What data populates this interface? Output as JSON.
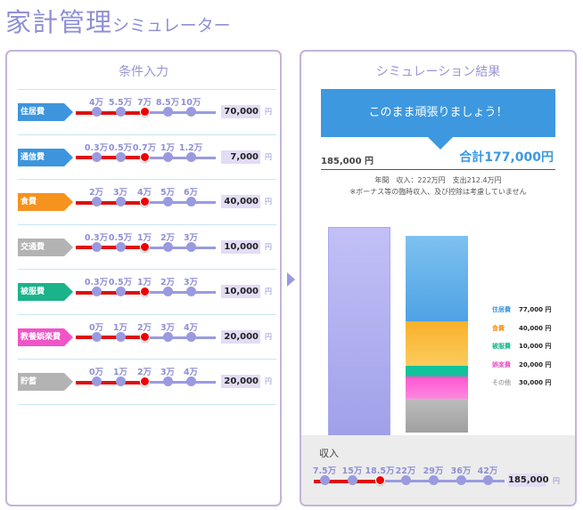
{
  "header": {
    "title_main": "家計管理",
    "title_sub": "シミュレーター"
  },
  "left_panel": {
    "title": "条件入力",
    "rows": [
      {
        "label": "住居費",
        "color": "#3d95de",
        "ticks": [
          "4万",
          "5.5万",
          "7万",
          "8.5万",
          "10万"
        ],
        "selected_index": 2,
        "value": "70,000",
        "unit": "円"
      },
      {
        "label": "通信費",
        "color": "#3d95de",
        "ticks": [
          "0.3万",
          "0.5万",
          "0.7万",
          "1万",
          "1.2万"
        ],
        "selected_index": 2,
        "value": "7,000",
        "unit": "円"
      },
      {
        "label": "食費",
        "color": "#f6921e",
        "ticks": [
          "2万",
          "3万",
          "4万",
          "5万",
          "6万"
        ],
        "selected_index": 2,
        "value": "40,000",
        "unit": "円"
      },
      {
        "label": "交通費",
        "color": "#b3b3b3",
        "ticks": [
          "0.3万",
          "0.5万",
          "1万",
          "2万",
          "3万"
        ],
        "selected_index": 2,
        "value": "10,000",
        "unit": "円"
      },
      {
        "label": "被服費",
        "color": "#1bb38a",
        "ticks": [
          "0.3万",
          "0.5万",
          "1万",
          "2万",
          "3万"
        ],
        "selected_index": 2,
        "value": "10,000",
        "unit": "円"
      },
      {
        "label": "教養娯楽費",
        "color": "#f055c8",
        "ticks": [
          "0万",
          "1万",
          "2万",
          "3万",
          "4万"
        ],
        "selected_index": 2,
        "value": "20,000",
        "unit": "円"
      },
      {
        "label": "貯蓄",
        "color": "#b3b3b3",
        "ticks": [
          "0万",
          "1万",
          "2万",
          "3万",
          "4万"
        ],
        "selected_index": 2,
        "value": "20,000",
        "unit": "円"
      }
    ]
  },
  "right_panel": {
    "title": "シミュレーション結果",
    "message": "このまま頑張りましょう！",
    "income_display": "185,000 円",
    "total_display": "合計177,000円",
    "annual_note": "年間　収入：222万円　支出212.4万円",
    "disclaimer": "※ボーナス等の臨時収入、及び控除は考慮していません",
    "legend": [
      {
        "label": "住居費",
        "value": "77,000 円",
        "color": "#3d95de"
      },
      {
        "label": "食費",
        "value": "40,000 円",
        "color": "#f6921e"
      },
      {
        "label": "被服費",
        "value": "10,000 円",
        "color": "#1bb38a"
      },
      {
        "label": "娯楽費",
        "value": "20,000 円",
        "color": "#f055c8"
      },
      {
        "label": "その他",
        "value": "30,000 円",
        "color": "#aaaaaa"
      }
    ],
    "income_slider": {
      "title": "収入",
      "ticks": [
        "7.5万",
        "15万",
        "18.5万",
        "22万",
        "29万",
        "36万",
        "42万"
      ],
      "selected_index": 2,
      "value": "185,000",
      "unit": "円"
    }
  },
  "chart_data": {
    "type": "bar",
    "categories": [
      "収入",
      "支出"
    ],
    "series": [
      {
        "name": "収入",
        "values": [
          185000,
          0
        ]
      },
      {
        "name": "住居費",
        "values": [
          0,
          77000
        ]
      },
      {
        "name": "食費",
        "values": [
          0,
          40000
        ]
      },
      {
        "name": "被服費",
        "values": [
          0,
          10000
        ]
      },
      {
        "name": "娯楽費",
        "values": [
          0,
          20000
        ]
      },
      {
        "name": "その他",
        "values": [
          0,
          30000
        ]
      }
    ],
    "stacked": true,
    "title": "",
    "xlabel": "",
    "ylabel": ""
  }
}
